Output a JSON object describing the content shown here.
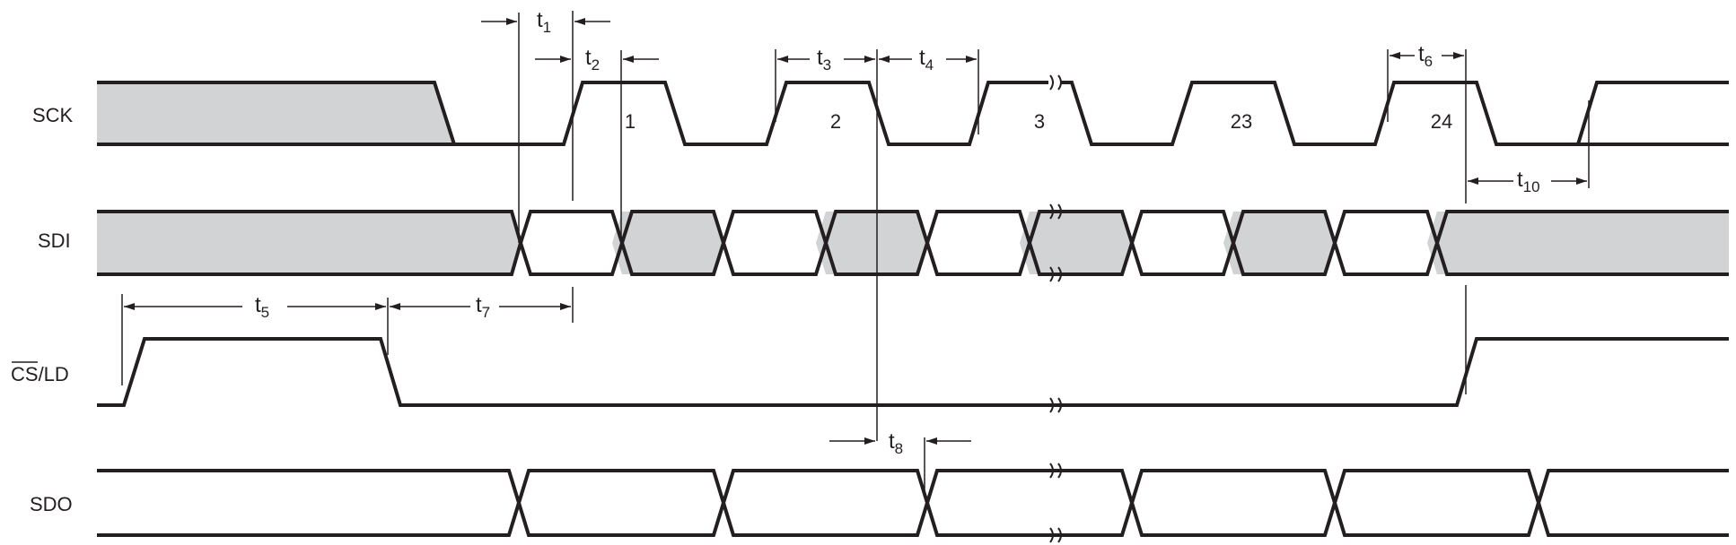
{
  "signals": {
    "sck": "SCK",
    "sdi": "SDI",
    "cs_ld_bar": "CS",
    "cs_ld_rest": "/LD",
    "sdo": "SDO"
  },
  "clock_numbers": [
    "1",
    "2",
    "3",
    "23",
    "24"
  ],
  "timing_labels": {
    "t1": "1",
    "t2": "2",
    "t3": "3",
    "t4": "4",
    "t5": "5",
    "t6": "6",
    "t7": "7",
    "t8": "8",
    "t10": "10"
  },
  "timing_prefix": "t",
  "colors": {
    "ink": "#231f20",
    "shade": "#d1d3d4"
  }
}
